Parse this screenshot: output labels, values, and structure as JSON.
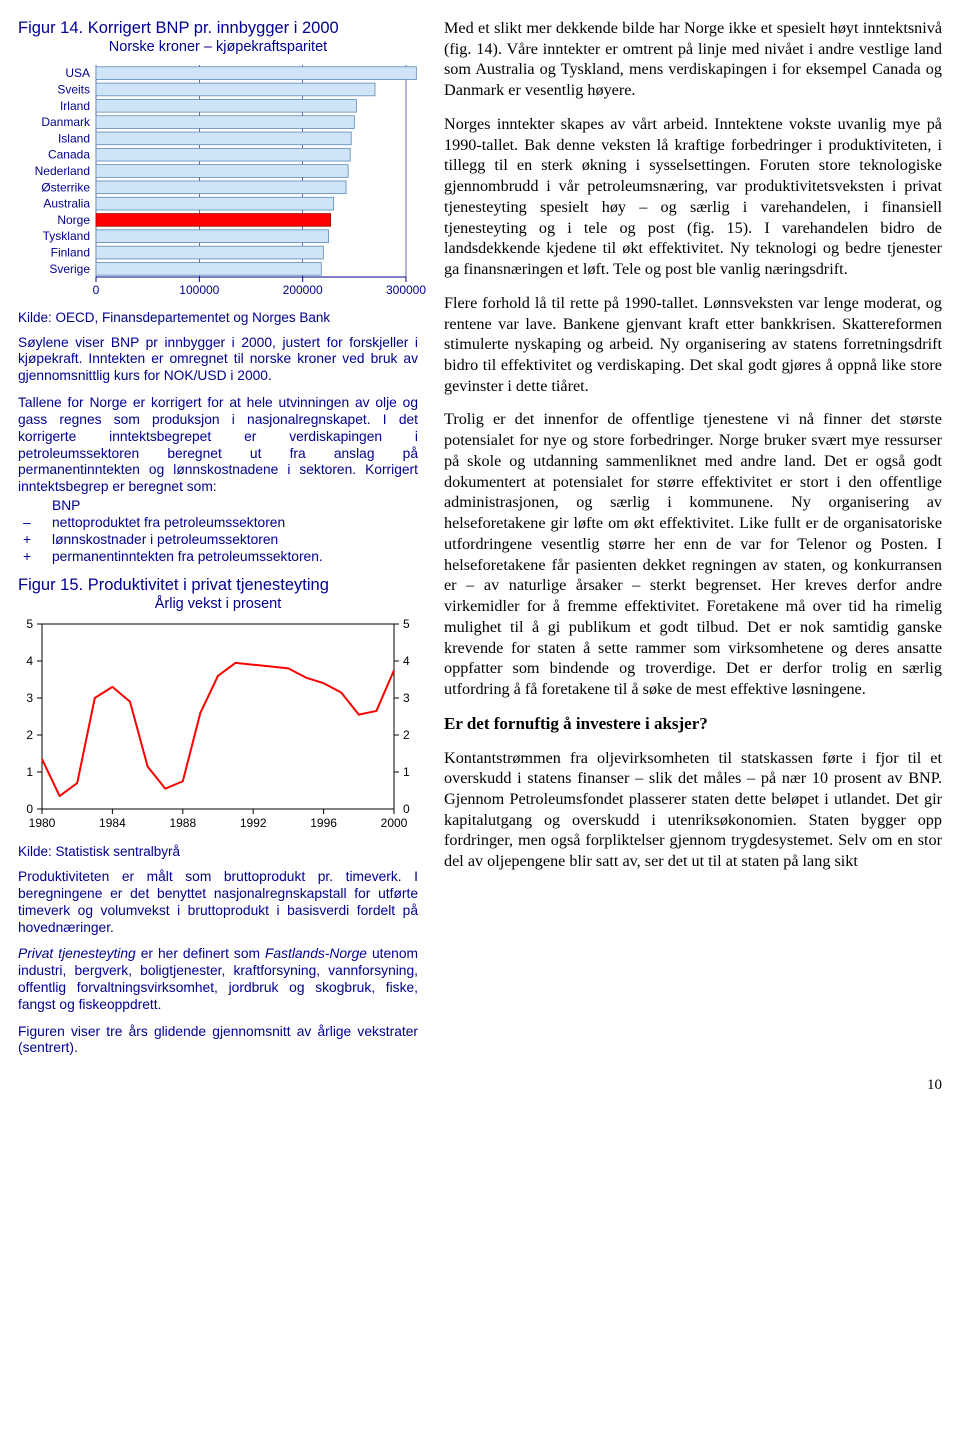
{
  "fig14": {
    "title": "Figur 14. Korrigert BNP pr. innbygger i 2000",
    "subtitle": "Norske kroner – kjøpekraftsparitet",
    "categories": [
      "USA",
      "Sveits",
      "Irland",
      "Danmark",
      "Island",
      "Canada",
      "Nederland",
      "Østerrike",
      "Australia",
      "Norge",
      "Tyskland",
      "Finland",
      "Sverige"
    ],
    "values": [
      310000,
      270000,
      252000,
      250000,
      247000,
      246000,
      244000,
      242000,
      230000,
      227000,
      225000,
      220000,
      218000
    ],
    "highlight_index": 9,
    "xmax": 300000,
    "xtick_step": 100000,
    "xtick_labels": [
      "0",
      "100000",
      "200000",
      "300000"
    ],
    "bar_fill": "#cfe4f7",
    "bar_stroke": "#5a8ab8",
    "highlight_fill": "#ff0000",
    "highlight_stroke": "#a00000",
    "axis_color": "#000090",
    "grid_color": "#000090",
    "label_color": "#000090",
    "label_fontsize": 12,
    "tick_fontsize": 12,
    "source": "Kilde: OECD, Finansdepartementet og Norges Bank",
    "blurb1": "Søylene viser BNP pr innbygger i 2000, justert for forskjeller i kjøpekraft. Inntekten er omregnet til norske kroner ved bruk av gjennomsnittlig kurs for NOK/USD i 2000.",
    "blurb2": "Tallene for Norge er korrigert for at hele utvinningen av olje og gass regnes som produksjon i nasjonalregnskapet. I det korrigerte inntektsbegrepet er verdiskapingen i petroleumssektoren beregnet ut fra anslag på permanentinntekten og lønnskostnadene i sektoren. Korrigert inntektsbegrep er beregnet som:",
    "calc_lines": [
      {
        "op": "",
        "txt": "BNP"
      },
      {
        "op": "–",
        "txt": "nettoproduktet fra petroleumssektoren"
      },
      {
        "op": "+",
        "txt": "lønnskostnader i petroleumssektoren"
      },
      {
        "op": "+",
        "txt": "permanentinntekten fra petroleumssektoren."
      }
    ]
  },
  "fig15": {
    "title": "Figur 15. Produktivitet i privat tjenesteyting",
    "subtitle": "Årlig vekst i prosent",
    "source": "Kilde: Statistisk sentralbyrå",
    "xmin": 1980,
    "xmax": 2000,
    "xticks": [
      1980,
      1984,
      1988,
      1992,
      1996,
      2000
    ],
    "ymin": 0,
    "ymax": 5,
    "ytick_step": 1,
    "yticks_left": [
      5,
      4,
      3,
      2,
      1,
      0
    ],
    "yticks_right": [
      5,
      4,
      3,
      2,
      1
    ],
    "line_color": "#ff0000",
    "line_width": 2,
    "axis_color": "#000000",
    "tick_color": "#000000",
    "frame_color": "#000000",
    "tick_fontsize": 12,
    "series": [
      [
        1980,
        1.35
      ],
      [
        1981,
        0.35
      ],
      [
        1982,
        0.7
      ],
      [
        1983,
        3.0
      ],
      [
        1984,
        3.3
      ],
      [
        1985,
        2.9
      ],
      [
        1986,
        1.15
      ],
      [
        1987,
        0.55
      ],
      [
        1988,
        0.75
      ],
      [
        1989,
        2.6
      ],
      [
        1990,
        3.6
      ],
      [
        1991,
        3.95
      ],
      [
        1992,
        3.9
      ],
      [
        1993,
        3.85
      ],
      [
        1994,
        3.8
      ],
      [
        1995,
        3.55
      ],
      [
        1996,
        3.4
      ],
      [
        1997,
        3.15
      ],
      [
        1998,
        2.55
      ],
      [
        1999,
        2.65
      ],
      [
        2000,
        3.75
      ]
    ],
    "blurb1": "Produktiviteten er målt som bruttoprodukt pr. timeverk. I beregningene er det benyttet nasjonalregnskapstall for utførte timeverk og volumvekst i bruttoprodukt i basisverdi fordelt på hovednæringer.",
    "blurb2_a": "Privat tjenesteyting",
    "blurb2_b": " er her definert som ",
    "blurb2_c": "Fastlands-Norge",
    "blurb2_d": " utenom industri, bergverk, boligtjenester, kraftforsyning, vannforsyning, offentlig forvaltningsvirksomhet, jordbruk og skogbruk, fiske, fangst og fiskeoppdrett.",
    "blurb3": "Figuren viser tre års glidende gjennomsnitt av årlige vekstrater (sentrert)."
  },
  "body": {
    "p1": "Med et slikt mer dekkende bilde har Norge ikke et spesielt høyt inntektsnivå (fig. 14). Våre inntekter er omtrent på linje med nivået i andre vestlige land som Australia og Tyskland, mens verdiskapingen i for eksempel Canada og Danmark er vesentlig høyere.",
    "p2": "Norges inntekter skapes av vårt arbeid. Inntektene vokste uvanlig mye på 1990-tallet. Bak denne veksten lå kraftige forbedringer i produktiviteten, i tillegg til en sterk økning i sysselsettingen. Foruten store teknologiske gjennombrudd i vår petroleumsnæring, var produktivitetsveksten i privat tjenesteyting spesielt høy – og særlig i varehandelen, i finansiell tjenesteyting og i tele og post (fig. 15). I varehandelen bidro de landsdekkende kjedene til økt effektivitet. Ny teknologi og bedre tjenester ga finansnæringen et løft. Tele og post ble vanlig næringsdrift.",
    "p3": "Flere forhold lå til rette på 1990-tallet. Lønnsveksten var lenge moderat, og rentene var lave. Bankene gjenvant kraft etter bankkrisen. Skattereformen stimulerte nyskaping og arbeid. Ny organisering av statens forretningsdrift bidro til effektivitet og verdiskaping. Det skal godt gjøres å oppnå like store gevinster i dette tiåret.",
    "p4": "Trolig er det innenfor de offentlige tjenestene vi nå finner det største potensialet for nye og store forbedringer. Norge bruker svært mye ressurser på skole og utdanning sammenliknet med andre land. Det er også godt dokumentert at potensialet for større effektivitet er stort i den offentlige administrasjonen, og særlig i kommunene. Ny organisering av helseforetakene gir løfte om økt effektivitet. Like fullt er de organisatoriske utfordringene vesentlig større her enn de var for Telenor og Posten. I helseforetakene får pasienten dekket regningen av staten, og konkurransen er – av naturlige årsaker – sterkt begrenset. Her kreves derfor andre virkemidler for å fremme effektivitet. Foretakene må over tid ha rimelig mulighet til å gi publikum et godt tilbud. Det er nok samtidig ganske krevende for staten å sette rammer som virksomhetene og deres ansatte oppfatter som bindende og troverdige. Det er derfor trolig en særlig utfordring å få foretakene til å søke de mest effektive løsningene.",
    "h2": "Er det fornuftig å investere i aksjer?",
    "p5": "Kontantstrømmen fra oljevirksomheten til statskassen førte i fjor til et overskudd i statens finanser – slik det måles – på nær 10 prosent av BNP. Gjennom Petroleumsfondet plasserer staten dette beløpet i utlandet. Det gir kapitalutgang og overskudd i utenriksøkonomien. Staten bygger opp fordringer, men også forpliktelser gjennom trygdesystemet. Selv om en stor del av oljepengene blir satt av, ser det ut til at staten på lang sikt"
  },
  "pagenum": "10"
}
